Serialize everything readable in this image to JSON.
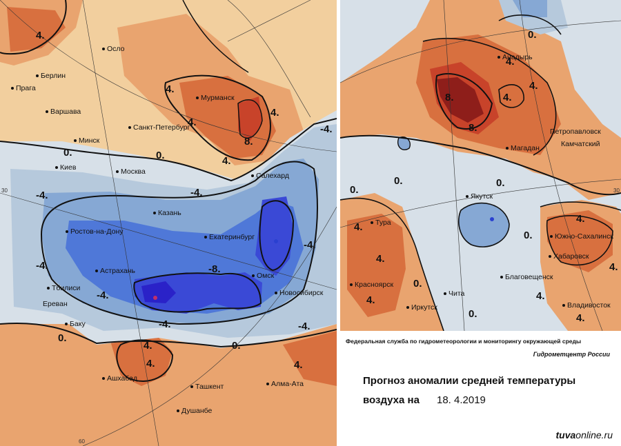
{
  "left_map": {
    "cities": [
      {
        "id": "oslo",
        "label": "Осло"
      },
      {
        "id": "berlin",
        "label": "Берлин"
      },
      {
        "id": "praga",
        "label": "Прага"
      },
      {
        "id": "murmansk",
        "label": "Мурманск"
      },
      {
        "id": "varshava",
        "label": "Варшава"
      },
      {
        "id": "spb",
        "label": "Санкт-Петербург"
      },
      {
        "id": "minsk",
        "label": "Минск"
      },
      {
        "id": "kiev",
        "label": "Киев"
      },
      {
        "id": "moskva",
        "label": "Москва"
      },
      {
        "id": "salekhard",
        "label": "Салехард"
      },
      {
        "id": "kazan",
        "label": "Казань"
      },
      {
        "id": "rostov",
        "label": "Ростов-на-Дону"
      },
      {
        "id": "ekaterinburg",
        "label": "Екатеринбург"
      },
      {
        "id": "astrakhan",
        "label": "Астрахань"
      },
      {
        "id": "omsk",
        "label": "Омск"
      },
      {
        "id": "tbilisi",
        "label": "Тбилиси"
      },
      {
        "id": "novosibirsk",
        "label": "Новосибирск"
      },
      {
        "id": "erevan",
        "label": "Ереван"
      },
      {
        "id": "baku",
        "label": "Баку"
      },
      {
        "id": "ashkhabad",
        "label": "Ашхабад"
      },
      {
        "id": "tashkent",
        "label": "Ташкент"
      },
      {
        "id": "almaata",
        "label": "Алма-Ата"
      },
      {
        "id": "dushanbe",
        "label": "Душанбе"
      }
    ],
    "isolines": [
      "4.",
      "4.",
      "4.",
      "4.",
      "8.",
      "4.",
      "0.",
      "-4.",
      "0.",
      "-4.",
      "-4.",
      "-4.",
      "-4.",
      "-8.",
      "-4.",
      "-4.",
      "-4.",
      "0.",
      "0.",
      "4.",
      "4.",
      "4."
    ],
    "ticks": [
      "30",
      "60"
    ]
  },
  "right_map": {
    "cities": [
      {
        "id": "anadyr",
        "label": "Анадырь"
      },
      {
        "id": "petropavlovsk",
        "label": "Петропавловск"
      },
      {
        "id": "kamchatsky",
        "label": "Камчатский"
      },
      {
        "id": "magadan",
        "label": "Магадан"
      },
      {
        "id": "yakutsk",
        "label": "Якутск"
      },
      {
        "id": "tura",
        "label": "Тура"
      },
      {
        "id": "yuzhno",
        "label": "Южно-Сахалинск"
      },
      {
        "id": "khabarovsk",
        "label": "Хабаровск"
      },
      {
        "id": "blagoveshchensk",
        "label": "Благовещенск"
      },
      {
        "id": "krasnoyarsk",
        "label": "Красноярск"
      },
      {
        "id": "chita",
        "label": "Чита"
      },
      {
        "id": "irkutsk",
        "label": "Иркутск"
      },
      {
        "id": "vladivostok",
        "label": "Владивосток"
      }
    ],
    "isolines": [
      "0.",
      "4.",
      "8.",
      "4.",
      "4.",
      "8.",
      "0.",
      "0.",
      "0.",
      "4.",
      "4.",
      "4.",
      "4.",
      "4.",
      "0.",
      "0.",
      "4.",
      "0.",
      "4."
    ],
    "ticks": [
      "30"
    ]
  },
  "info": {
    "organization": "Федеральная служба по гидрометеорологии и мониторингу окружающей среды",
    "center": "Гидрометцентр России",
    "title_line1": "Прогноз аномалии средней температуры",
    "title_line2": "воздуха на",
    "date": "18. 4.2019",
    "watermark_bold": "tuva",
    "watermark_rest": "online.ru"
  },
  "colors": {
    "warm_light": "#f2cf9e",
    "warm_mid": "#e9a46f",
    "warm_strong": "#d8703f",
    "hot": "#c8432a",
    "hot_core": "#8e1e1a",
    "neutral": "#d7e0e8",
    "cool_light": "#b6c9dc",
    "cool_mid": "#86a8d4",
    "cool_strong": "#4f78d8",
    "cold": "#3a49d6",
    "cold_core": "#2a22c8"
  }
}
